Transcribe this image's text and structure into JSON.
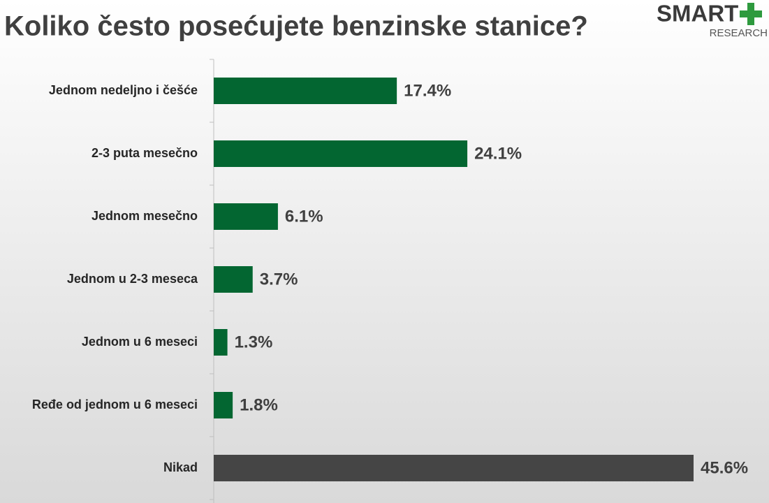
{
  "chart_data": {
    "type": "hbar",
    "title": "Koliko često posećujete benzinske stanice?",
    "categories": [
      "Jednom nedeljno i češće",
      "2-3 puta mesečno",
      "Jednom mesečno",
      "Jednom u 2-3 meseca",
      "Jednom u 6 meseci",
      "Ređe od jednom u 6 meseci",
      "Nikad"
    ],
    "values": [
      17.4,
      24.1,
      6.1,
      3.7,
      1.3,
      1.8,
      45.6
    ],
    "value_labels": [
      "17.4%",
      "24.1%",
      "6.1%",
      "3.7%",
      "1.3%",
      "1.8%",
      "45.6%"
    ],
    "colors": [
      "#036631",
      "#036631",
      "#036631",
      "#036631",
      "#036631",
      "#036631",
      "#454545"
    ]
  },
  "logo": {
    "name": "SMART",
    "tagline": "RESEARCH"
  }
}
